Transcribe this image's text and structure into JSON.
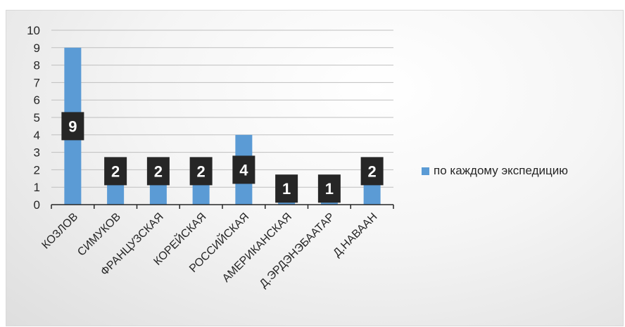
{
  "chart_data": {
    "type": "bar",
    "categories": [
      "КОЗЛОВ",
      "СИМУКОВ",
      "ФРАНЦУЗСКАЯ",
      "КОРЕЙСКАЯ",
      "РОССИЙСКАЯ",
      "АМЕРИКАНСКАЯ",
      "Д.ЭРДЭНЭБААТАР",
      "Д.НАВААН"
    ],
    "series": [
      {
        "name": "по каждому экспедицию",
        "values": [
          9,
          2,
          2,
          2,
          4,
          1,
          1,
          2
        ],
        "color": "#5b9bd5"
      }
    ],
    "ylim": [
      0,
      10
    ],
    "yticks": [
      0,
      1,
      2,
      3,
      4,
      5,
      6,
      7,
      8,
      9,
      10
    ],
    "grid": true,
    "legend_position": "right",
    "data_labels": true,
    "data_label_style": {
      "background": "#262626",
      "color": "#ffffff"
    }
  }
}
